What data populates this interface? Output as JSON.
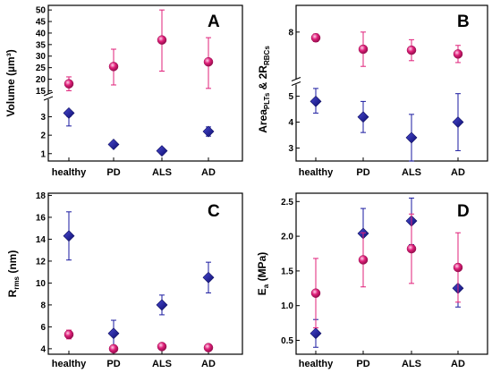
{
  "figure": {
    "panel_count": 4
  },
  "colors": {
    "healthy_series": "#1a1aa0",
    "disease_series": "#e0207a"
  },
  "chart_data": [
    {
      "id": "A",
      "type": "scatter",
      "panel_label": "A",
      "ylabel": "Volume (µm³)",
      "categories": [
        "healthy",
        "PD",
        "ALS",
        "AD"
      ],
      "axis_break": true,
      "lower_range": [
        0.6,
        3.9
      ],
      "upper_range": [
        14,
        52
      ],
      "lower_ticks": [
        1,
        2,
        3
      ],
      "upper_ticks": [
        15,
        20,
        25,
        30,
        35,
        40,
        45,
        50
      ],
      "series": [
        {
          "marker": "diamond",
          "color": "#1a1aa0",
          "values": [
            3.2,
            1.5,
            1.15,
            2.2
          ],
          "err_low": [
            2.5,
            1.35,
            1.0,
            1.95
          ],
          "err_high": [
            3.95,
            1.65,
            1.3,
            2.45
          ]
        },
        {
          "marker": "sphere",
          "color": "#e0207a",
          "values": [
            18,
            25.5,
            37,
            27.5
          ],
          "err_low": [
            15,
            17.5,
            23.5,
            16
          ],
          "err_high": [
            21,
            33,
            50,
            38
          ]
        }
      ],
      "grid": false
    },
    {
      "id": "B",
      "type": "scatter",
      "panel_label": "B",
      "ylabel": "Area_PLTs & 2R_RBCs",
      "categories": [
        "healthy",
        "PD",
        "ALS",
        "AD"
      ],
      "axis_break": true,
      "lower_range": [
        2.5,
        5.4
      ],
      "upper_range": [
        5.6,
        9.4
      ],
      "lower_ticks": [
        3,
        4,
        5
      ],
      "upper_ticks": [
        8
      ],
      "series": [
        {
          "marker": "diamond",
          "color": "#1a1aa0",
          "values": [
            4.8,
            4.2,
            3.4,
            4.0
          ],
          "err_low": [
            4.35,
            3.6,
            2.5,
            2.9
          ],
          "err_high": [
            5.3,
            4.8,
            4.3,
            5.1
          ]
        },
        {
          "marker": "sphere",
          "color": "#e0207a",
          "values": [
            7.7,
            7.1,
            7.05,
            6.85
          ],
          "err_low": [
            7.5,
            6.2,
            6.5,
            6.4
          ],
          "err_high": [
            7.9,
            8.0,
            7.6,
            7.3
          ]
        }
      ],
      "grid": false
    },
    {
      "id": "C",
      "type": "scatter",
      "panel_label": "C",
      "ylabel": "R_rms (nm)",
      "categories": [
        "healthy",
        "PD",
        "ALS",
        "AD"
      ],
      "ylim": [
        3.5,
        18.2
      ],
      "yticks": [
        4,
        6,
        8,
        10,
        12,
        14,
        16,
        18
      ],
      "series": [
        {
          "marker": "diamond",
          "color": "#1a1aa0",
          "values": [
            14.3,
            5.4,
            8.0,
            10.5
          ],
          "err_low": [
            12.1,
            4.3,
            7.1,
            9.1
          ],
          "err_high": [
            16.5,
            6.6,
            8.9,
            11.9
          ]
        },
        {
          "marker": "sphere",
          "color": "#e0207a",
          "values": [
            5.3,
            4.0,
            4.2,
            4.1
          ],
          "err_low": [
            4.9,
            3.7,
            4.1,
            4.0
          ],
          "err_high": [
            5.7,
            4.3,
            4.3,
            4.2
          ]
        }
      ],
      "grid": false
    },
    {
      "id": "D",
      "type": "scatter",
      "panel_label": "D",
      "ylabel": "E_a (MPa)",
      "categories": [
        "healthy",
        "PD",
        "ALS",
        "AD"
      ],
      "ylim": [
        0.3,
        2.62
      ],
      "yticks": [
        0.5,
        1.0,
        1.5,
        2.0,
        2.5
      ],
      "ytick_labels": [
        "0.5",
        "1.0",
        "1.5",
        "2.0",
        "2.5"
      ],
      "series": [
        {
          "marker": "diamond",
          "color": "#1a1aa0",
          "values": [
            0.6,
            2.04,
            2.22,
            1.25
          ],
          "err_low": [
            0.4,
            1.68,
            1.88,
            0.98
          ],
          "err_high": [
            0.8,
            2.4,
            2.55,
            1.52
          ]
        },
        {
          "marker": "sphere",
          "color": "#e0207a",
          "values": [
            1.18,
            1.66,
            1.82,
            1.55
          ],
          "err_low": [
            0.68,
            1.27,
            1.32,
            1.05
          ],
          "err_high": [
            1.68,
            2.05,
            2.32,
            2.05
          ]
        }
      ],
      "grid": false
    }
  ]
}
